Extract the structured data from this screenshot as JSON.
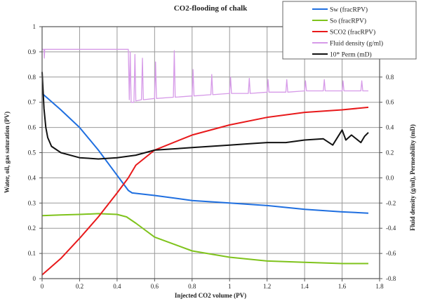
{
  "chart_data": {
    "type": "line",
    "title": "CO2-flooding of chalk",
    "xlabel": "Injected CO2 volume (PV)",
    "ylabel": "Water, oil, gas saturation (PV)",
    "y2label": "Fluid density (g/ml), Permeability (mD)",
    "xlim": [
      0,
      1.8
    ],
    "ylim": [
      0,
      1
    ],
    "y2lim": [
      -0.8,
      1.2
    ],
    "xticks": [
      "0",
      "0.2",
      "0.4",
      "0.6",
      "0.8",
      "1",
      "1.2",
      "1.4",
      "1.6",
      "1.8"
    ],
    "yticks": [
      "0",
      "0.1",
      "0.2",
      "0.3",
      "0.4",
      "0.5",
      "0.6",
      "0.7",
      "0.8",
      "0.9",
      "1"
    ],
    "y2ticks": [
      "-0.8",
      "-0.6",
      "-0.4",
      "-0.2",
      "0.0",
      "0.2",
      "0.4",
      "0.6",
      "0.8"
    ],
    "grid": true,
    "legend_position": "top-right",
    "series": [
      {
        "name": "Sw (fracRPV)",
        "color": "#1f6fe0",
        "axis": "left",
        "x": [
          0,
          0.1,
          0.2,
          0.3,
          0.4,
          0.46,
          0.48,
          0.6,
          0.8,
          1.0,
          1.2,
          1.4,
          1.6,
          1.74
        ],
        "y": [
          0.735,
          0.67,
          0.6,
          0.51,
          0.41,
          0.35,
          0.34,
          0.33,
          0.31,
          0.3,
          0.29,
          0.275,
          0.265,
          0.26
        ]
      },
      {
        "name": "So (fracRPV)",
        "color": "#7fc31c",
        "axis": "left",
        "x": [
          0,
          0.1,
          0.2,
          0.3,
          0.4,
          0.45,
          0.5,
          0.6,
          0.8,
          1.0,
          1.2,
          1.4,
          1.6,
          1.74
        ],
        "y": [
          0.25,
          0.253,
          0.255,
          0.258,
          0.255,
          0.245,
          0.22,
          0.165,
          0.11,
          0.085,
          0.07,
          0.065,
          0.06,
          0.06
        ]
      },
      {
        "name": "SCO2 (fracRPV)",
        "color": "#e8191b",
        "axis": "left",
        "x": [
          0,
          0.1,
          0.2,
          0.3,
          0.4,
          0.46,
          0.5,
          0.6,
          0.8,
          1.0,
          1.2,
          1.4,
          1.6,
          1.74
        ],
        "y": [
          0.015,
          0.08,
          0.16,
          0.245,
          0.34,
          0.4,
          0.45,
          0.51,
          0.57,
          0.61,
          0.64,
          0.66,
          0.67,
          0.68
        ]
      },
      {
        "name": "Fluid density (g/ml)",
        "color": "#d69ae8",
        "axis": "right",
        "x": [
          0,
          0.01,
          0.012,
          0.014,
          0.46,
          0.465,
          0.47,
          0.475,
          0.49,
          0.495,
          0.5,
          0.53,
          0.535,
          0.54,
          0.6,
          0.605,
          0.61,
          0.7,
          0.705,
          0.71,
          0.8,
          0.805,
          0.81,
          0.9,
          0.905,
          0.91,
          1.0,
          1.005,
          1.01,
          1.1,
          1.105,
          1.11,
          1.2,
          1.205,
          1.21,
          1.3,
          1.305,
          1.31,
          1.4,
          1.405,
          1.41,
          1.5,
          1.505,
          1.51,
          1.6,
          1.605,
          1.61,
          1.7,
          1.705,
          1.71,
          1.74
        ],
        "y": [
          1.02,
          1.02,
          0.95,
          1.02,
          1.02,
          0.62,
          1.0,
          0.6,
          0.6,
          0.98,
          0.61,
          0.62,
          0.95,
          0.62,
          0.63,
          0.92,
          0.63,
          0.64,
          1.01,
          0.64,
          0.65,
          0.86,
          0.65,
          0.66,
          0.82,
          0.66,
          0.67,
          0.8,
          0.67,
          0.67,
          0.79,
          0.67,
          0.68,
          0.78,
          0.68,
          0.68,
          0.78,
          0.68,
          0.69,
          0.77,
          0.69,
          0.69,
          0.78,
          0.69,
          0.69,
          0.77,
          0.69,
          0.69,
          0.77,
          0.69,
          0.69
        ]
      },
      {
        "name": "10* Perm (mD)",
        "color": "#111111",
        "axis": "right",
        "x": [
          0,
          0.005,
          0.01,
          0.02,
          0.03,
          0.05,
          0.1,
          0.2,
          0.3,
          0.4,
          0.5,
          0.6,
          0.7,
          0.8,
          0.9,
          1.0,
          1.1,
          1.2,
          1.3,
          1.4,
          1.5,
          1.55,
          1.6,
          1.62,
          1.65,
          1.7,
          1.72,
          1.74
        ],
        "y": [
          0.84,
          0.7,
          0.55,
          0.4,
          0.32,
          0.25,
          0.2,
          0.16,
          0.15,
          0.16,
          0.18,
          0.22,
          0.23,
          0.24,
          0.25,
          0.26,
          0.27,
          0.28,
          0.28,
          0.3,
          0.31,
          0.26,
          0.38,
          0.3,
          0.34,
          0.28,
          0.33,
          0.36
        ]
      }
    ]
  }
}
